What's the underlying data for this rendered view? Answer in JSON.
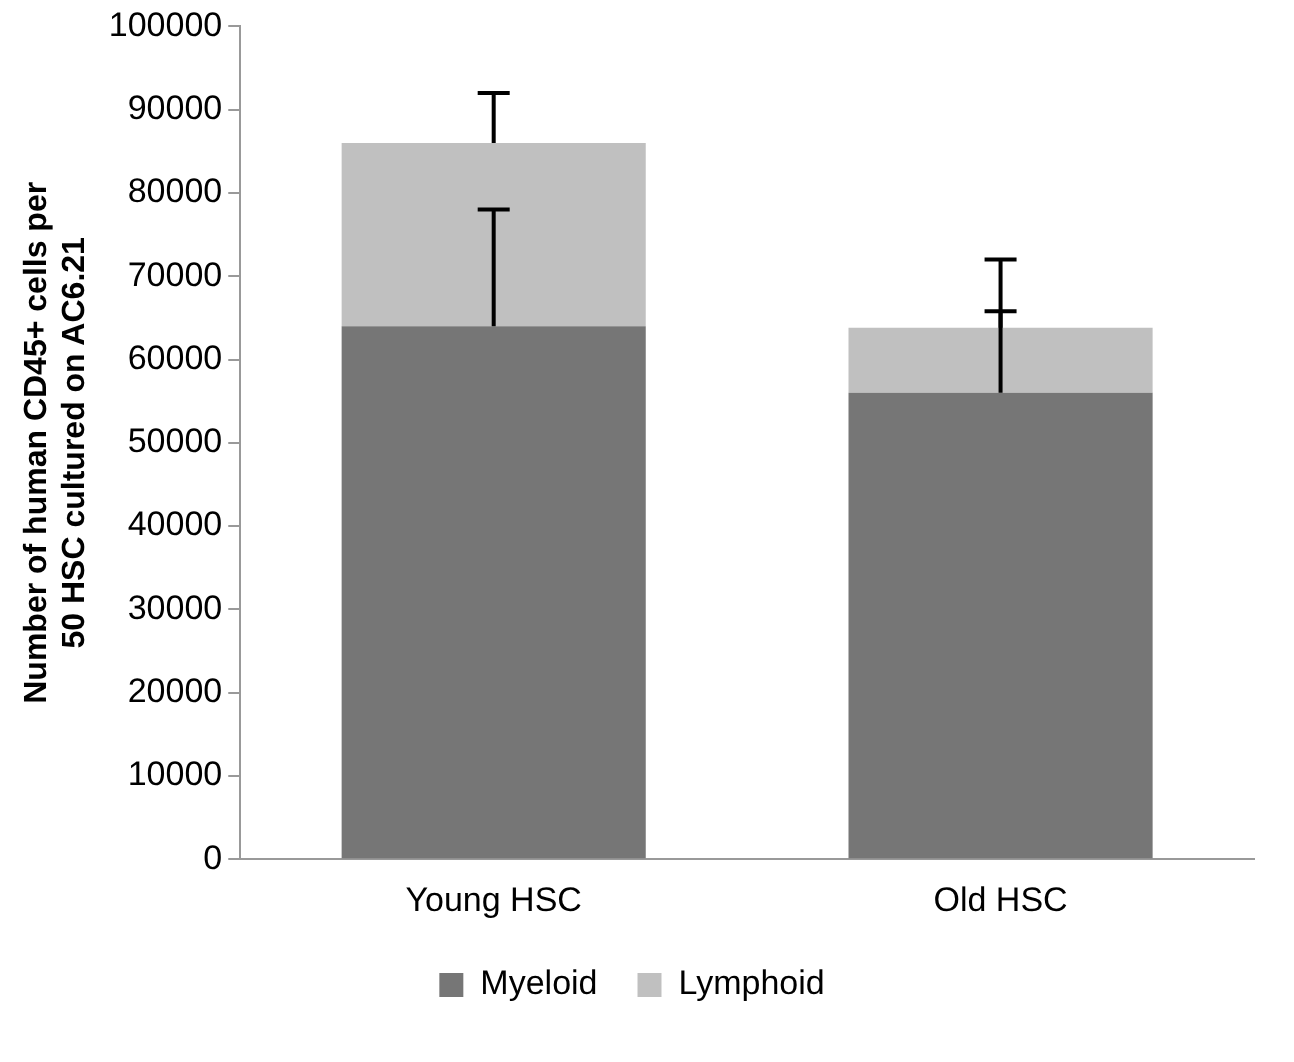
{
  "chart_data": {
    "type": "bar",
    "stacked": true,
    "ylabel": "Number of human CD45+ cells per 50 HSC cultured on AC6.21",
    "categories": [
      "Young HSC",
      "Old HSC"
    ],
    "series": [
      {
        "name": "Myeloid",
        "color": "#767676",
        "values": [
          64000,
          56000
        ],
        "errors": [
          [
            64000,
            78000
          ],
          [
            56000,
            65800
          ]
        ]
      },
      {
        "name": "Lymphoid",
        "color": "#c0c0c0",
        "values": [
          22000,
          7800
        ],
        "errors": [
          [
            86000,
            92000
          ],
          [
            63800,
            72000
          ]
        ]
      }
    ],
    "ylim": [
      0,
      100000
    ],
    "yticks": [
      0,
      10000,
      20000,
      30000,
      40000,
      50000,
      60000,
      70000,
      80000,
      90000,
      100000
    ],
    "grid": false,
    "legend": "bottom"
  }
}
